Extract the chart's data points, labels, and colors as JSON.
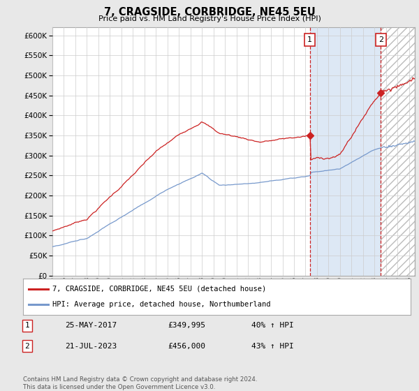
{
  "title": "7, CRAGSIDE, CORBRIDGE, NE45 5EU",
  "subtitle": "Price paid vs. HM Land Registry's House Price Index (HPI)",
  "ylim": [
    0,
    620000
  ],
  "yticks": [
    0,
    50000,
    100000,
    150000,
    200000,
    250000,
    300000,
    350000,
    400000,
    450000,
    500000,
    550000,
    600000
  ],
  "grid_color": "#cccccc",
  "bg_color": "#e8e8e8",
  "plot_bg_color": "#ffffff",
  "hpi_color": "#7799cc",
  "price_color": "#cc2222",
  "vline_color": "#cc2222",
  "shade_color": "#dde8f5",
  "hatch_color": "#cccccc",
  "marker1_year": 2017.38,
  "marker1_price": 349995,
  "marker1_label": "1",
  "marker2_year": 2023.55,
  "marker2_price": 456000,
  "marker2_label": "2",
  "xlim_start": 1995.0,
  "xlim_end": 2026.5,
  "legend_entries": [
    {
      "label": "7, CRAGSIDE, CORBRIDGE, NE45 5EU (detached house)",
      "color": "#cc2222"
    },
    {
      "label": "HPI: Average price, detached house, Northumberland",
      "color": "#7799cc"
    }
  ],
  "table_rows": [
    {
      "num": "1",
      "date": "25-MAY-2017",
      "price": "£349,995",
      "change": "40% ↑ HPI"
    },
    {
      "num": "2",
      "date": "21-JUL-2023",
      "price": "£456,000",
      "change": "43% ↑ HPI"
    }
  ],
  "footer": "Contains HM Land Registry data © Crown copyright and database right 2024.\nThis data is licensed under the Open Government Licence v3.0."
}
